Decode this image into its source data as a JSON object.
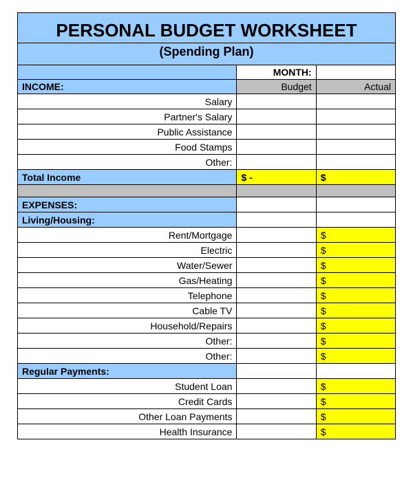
{
  "colors": {
    "header_bg": "#99ccff",
    "gray_bg": "#c0c0c0",
    "yellow_bg": "#ffff00",
    "border": "#000000",
    "white": "#ffffff"
  },
  "title": "PERSONAL BUDGET WORKSHEET",
  "subtitle": "(Spending Plan)",
  "month_label": "MONTH:",
  "month_value": "",
  "columns": {
    "budget": "Budget",
    "actual": "Actual"
  },
  "income": {
    "label": "INCOME:",
    "items": [
      {
        "name": "Salary",
        "budget": "",
        "actual": ""
      },
      {
        "name": "Partner's Salary",
        "budget": "",
        "actual": ""
      },
      {
        "name": "Public Assistance",
        "budget": "",
        "actual": ""
      },
      {
        "name": "Food Stamps",
        "budget": "",
        "actual": ""
      },
      {
        "name": "Other:",
        "budget": "",
        "actual": ""
      }
    ],
    "total": {
      "label": "Total Income",
      "budget": "$              -",
      "actual": "$"
    }
  },
  "expenses": {
    "label": "EXPENSES:",
    "sections": [
      {
        "label": "Living/Housing:",
        "items": [
          {
            "name": "Rent/Mortgage",
            "budget": "",
            "actual": "$"
          },
          {
            "name": "Electric",
            "budget": "",
            "actual": "$"
          },
          {
            "name": "Water/Sewer",
            "budget": "",
            "actual": "$"
          },
          {
            "name": "Gas/Heating",
            "budget": "",
            "actual": "$"
          },
          {
            "name": "Telephone",
            "budget": "",
            "actual": "$"
          },
          {
            "name": "Cable TV",
            "budget": "",
            "actual": "$"
          },
          {
            "name": "Household/Repairs",
            "budget": "",
            "actual": "$"
          },
          {
            "name": "Other:",
            "budget": "",
            "actual": "$"
          },
          {
            "name": "Other:",
            "budget": "",
            "actual": "$"
          }
        ]
      },
      {
        "label": "Regular Payments:",
        "items": [
          {
            "name": "Student Loan",
            "budget": "",
            "actual": "$"
          },
          {
            "name": "Credit Cards",
            "budget": "",
            "actual": "$"
          },
          {
            "name": "Other Loan Payments",
            "budget": "",
            "actual": "$"
          },
          {
            "name": "Health Insurance",
            "budget": "",
            "actual": "$"
          }
        ]
      }
    ]
  }
}
